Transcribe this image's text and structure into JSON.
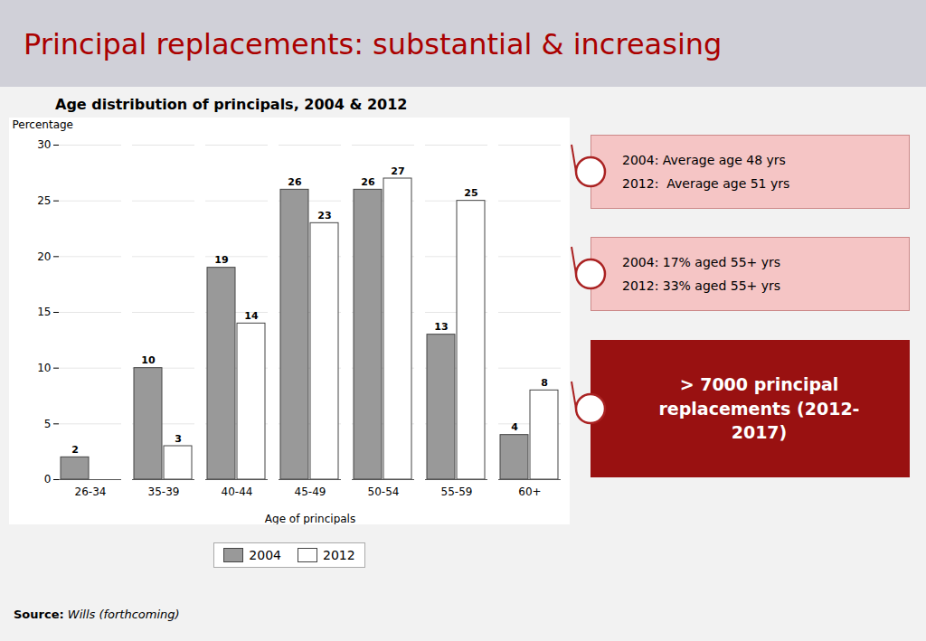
{
  "chart_data": {
    "type": "bar",
    "title": "Principal replacements: substantial & increasing",
    "subtitle": "Age distribution of principals, 2004 & 2012",
    "categories": [
      "26-34",
      "35-39",
      "40-44",
      "45-49",
      "50-54",
      "55-59",
      "60+"
    ],
    "series": [
      {
        "name": "2004",
        "color": "#999999",
        "values": [
          2,
          10,
          19,
          26,
          26,
          13,
          4
        ]
      },
      {
        "name": "2012",
        "color": "#ffffff",
        "values": [
          0,
          3,
          14,
          23,
          27,
          25,
          8
        ],
        "value_labels": [
          null,
          "3",
          "14",
          "23",
          "27",
          "25",
          "8"
        ]
      }
    ],
    "xlabel": "Age of principals",
    "ylabel": "Percentage",
    "ylim": [
      0,
      30
    ],
    "yticks": [
      0,
      5,
      10,
      15,
      20,
      25,
      30
    ],
    "grid": true,
    "legend": "bottom",
    "data_labels": true,
    "annotations": [
      [
        "2004: Average age 48 yrs",
        "2012:  Average age 51 yrs"
      ],
      [
        "2004: 17% aged 55+ yrs",
        "2012: 33% aged 55+ yrs"
      ],
      [
        "> 7000 principal\nreplacements (2012-\n2017)"
      ]
    ],
    "source": [
      "Source:",
      "Wills (forthcoming)"
    ]
  }
}
